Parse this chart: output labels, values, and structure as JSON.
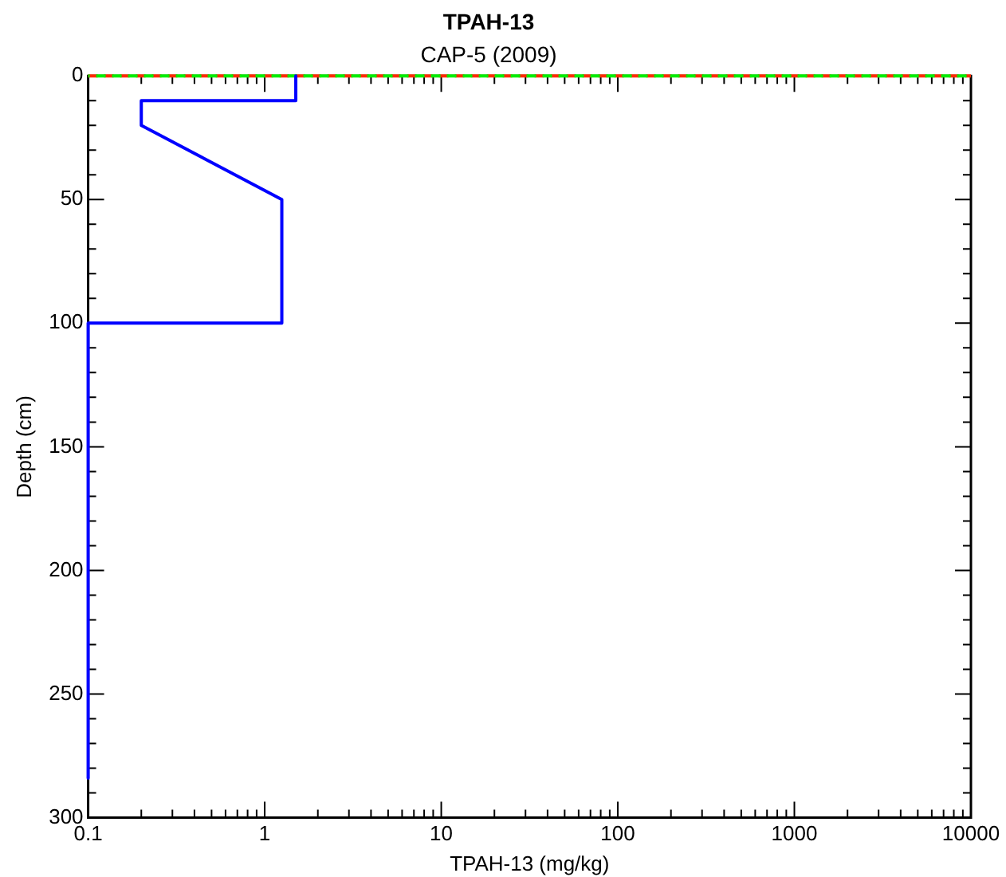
{
  "chart_data": {
    "type": "line",
    "title": "TPAH-13",
    "subtitle": "CAP-5 (2009)",
    "xlabel": "TPAH-13 (mg/kg)",
    "ylabel": "Depth (cm)",
    "series": [
      {
        "color": "#0000ff",
        "x": [
          1.5,
          1.5,
          0.2,
          0.2,
          1.25,
          1.25,
          0.1,
          0.1
        ],
        "values": [
          0,
          10,
          10,
          20,
          50,
          100,
          100,
          284
        ]
      }
    ],
    "log": "x",
    "xlim": [
      0.1,
      10000
    ],
    "xticks": [
      0.1,
      1,
      10,
      100,
      1000,
      10000
    ],
    "ylim": [
      300,
      0
    ],
    "yticks": [
      0,
      50,
      100,
      150,
      200,
      250,
      300
    ],
    "ref_lines": [
      {
        "axis": "y",
        "value": 0,
        "color": "#ff2a00",
        "line_style": "dashed"
      },
      {
        "axis": "y",
        "value": 0,
        "color": "#00ee00",
        "line_style": "dashed"
      }
    ],
    "grid": false,
    "legend": false,
    "marker": "none",
    "line_style": "solid"
  }
}
